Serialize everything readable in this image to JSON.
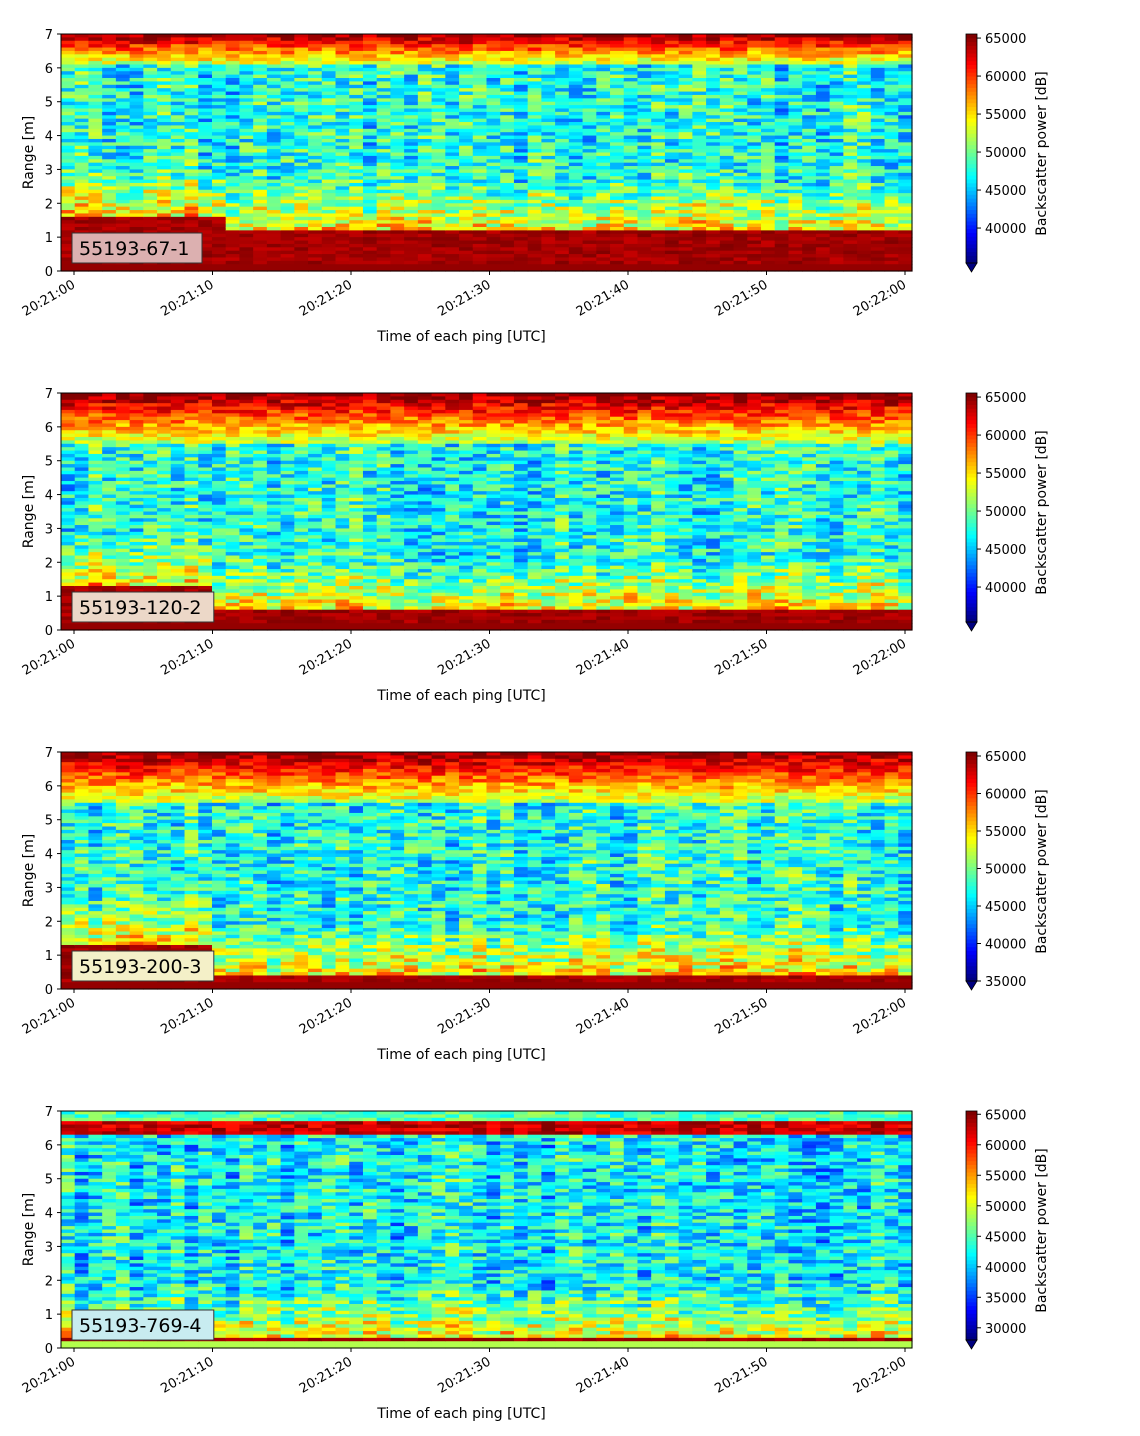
{
  "chart_data": [
    {
      "type": "heatmap",
      "title": "",
      "xlabel": "Time of each ping [UTC]",
      "ylabel": "Range [m]",
      "xticks": [
        "20:21:00",
        "20:21:10",
        "20:21:20",
        "20:21:30",
        "20:21:40",
        "20:21:50",
        "20:22:00"
      ],
      "yticks": [
        "0",
        "1",
        "2",
        "3",
        "4",
        "5",
        "6",
        "7"
      ],
      "ylim": [
        0,
        7
      ],
      "xlim": [
        "20:21:00",
        "20:22:00"
      ],
      "annotation": "55193-67-1",
      "annotation_bg": "#dcb0b0",
      "colorbar": {
        "label": "Backscatter power [dB]",
        "ticks": [
          "40000",
          "45000",
          "50000",
          "55000",
          "60000",
          "65000"
        ],
        "vmin": 35400,
        "vmax": 65535,
        "colormap": "jet",
        "extend": "min"
      },
      "profile": {
        "description": "column-wise mean levels",
        "near_field_top_m": 1.15,
        "near_field_top_m_early": 1.6,
        "early_end_s": 11,
        "surface_band_m": [
          6.1,
          7.0
        ]
      }
    },
    {
      "type": "heatmap",
      "title": "",
      "xlabel": "Time of each ping [UTC]",
      "ylabel": "Range [m]",
      "xticks": [
        "20:21:00",
        "20:21:10",
        "20:21:20",
        "20:21:30",
        "20:21:40",
        "20:21:50",
        "20:22:00"
      ],
      "yticks": [
        "0",
        "1",
        "2",
        "3",
        "4",
        "5",
        "6",
        "7"
      ],
      "ylim": [
        0,
        7
      ],
      "xlim": [
        "20:21:00",
        "20:22:00"
      ],
      "annotation": "55193-120-2",
      "annotation_bg": "#ecd8c8",
      "colorbar": {
        "label": "Backscatter power [dB]",
        "ticks": [
          "40000",
          "45000",
          "50000",
          "55000",
          "60000",
          "65000"
        ],
        "vmin": 35400,
        "vmax": 65535,
        "colormap": "jet",
        "extend": "min"
      },
      "profile": {
        "near_field_top_m": 0.55,
        "near_field_top_m_early": 1.3,
        "early_end_s": 10,
        "surface_band_m": [
          5.5,
          7.0
        ]
      }
    },
    {
      "type": "heatmap",
      "title": "",
      "xlabel": "Time of each ping [UTC]",
      "ylabel": "Range [m]",
      "xticks": [
        "20:21:00",
        "20:21:10",
        "20:21:20",
        "20:21:30",
        "20:21:40",
        "20:21:50",
        "20:22:00"
      ],
      "yticks": [
        "0",
        "1",
        "2",
        "3",
        "4",
        "5",
        "6",
        "7"
      ],
      "ylim": [
        0,
        7
      ],
      "xlim": [
        "20:21:00",
        "20:22:00"
      ],
      "annotation": "55193-200-3",
      "annotation_bg": "#f4f0c8",
      "colorbar": {
        "label": "Backscatter power [dB]",
        "ticks": [
          "35000",
          "40000",
          "45000",
          "50000",
          "55000",
          "60000",
          "65000"
        ],
        "vmin": 35000,
        "vmax": 65535,
        "colormap": "jet",
        "extend": "min"
      },
      "profile": {
        "near_field_top_m": 0.4,
        "near_field_top_m_early": 1.3,
        "early_end_s": 10,
        "surface_band_m": [
          5.5,
          7.0
        ]
      }
    },
    {
      "type": "heatmap",
      "title": "",
      "xlabel": "Time of each ping [UTC]",
      "ylabel": "Range [m]",
      "xticks": [
        "20:21:00",
        "20:21:10",
        "20:21:20",
        "20:21:30",
        "20:21:40",
        "20:21:50",
        "20:22:00"
      ],
      "yticks": [
        "0",
        "1",
        "2",
        "3",
        "4",
        "5",
        "6",
        "7"
      ],
      "ylim": [
        0,
        7
      ],
      "xlim": [
        "20:21:00",
        "20:22:00"
      ],
      "annotation": "55193-769-4",
      "annotation_bg": "#c8ecf0",
      "colorbar": {
        "label": "Backscatter power [dB]",
        "ticks": [
          "30000",
          "35000",
          "40000",
          "45000",
          "50000",
          "55000",
          "60000",
          "65000"
        ],
        "vmin": 28000,
        "vmax": 65535,
        "colormap": "jet",
        "extend": "min"
      },
      "profile": {
        "near_field_top_m": 0.3,
        "near_field_top_m_early": 0.3,
        "early_end_s": 0,
        "surface_band_m": [
          6.3,
          6.7
        ]
      }
    }
  ]
}
